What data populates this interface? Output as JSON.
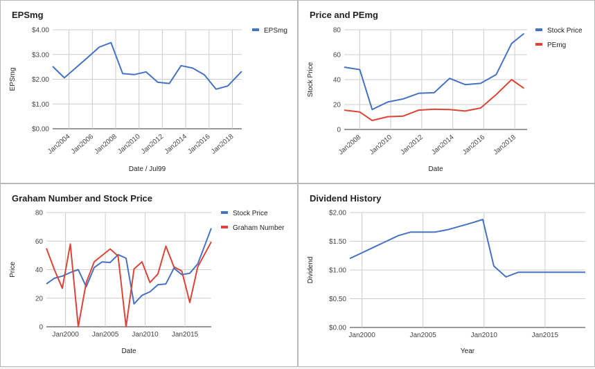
{
  "chart_data": [
    {
      "type": "line",
      "title": "EPSmg",
      "xlabel": "Date / Jul99",
      "ylabel": "EPSmg",
      "xlim": [
        2002.6,
        2018.8
      ],
      "ylim": [
        0,
        4
      ],
      "yticks": [
        0,
        1,
        2,
        3,
        4
      ],
      "ytick_labels": [
        "$0.00",
        "$1.00",
        "$2.00",
        "$3.00",
        "$4.00"
      ],
      "xticks": [
        2004,
        2006,
        2008,
        2010,
        2012,
        2014,
        2016,
        2018
      ],
      "xtick_labels": [
        "Jan2004",
        "Jan2006",
        "Jan2008",
        "Jan2010",
        "Jan2012",
        "Jan2014",
        "Jan2016",
        "Jan2018"
      ],
      "grid": true,
      "legend": "top-right",
      "rotate_xticks": true,
      "series": [
        {
          "name": "EPSmg",
          "color": "#4472C4",
          "x": [
            2002.6,
            2003.6,
            2004.6,
            2005.6,
            2006.6,
            2007.6,
            2008.6,
            2009.6,
            2010.6,
            2011.6,
            2012.6,
            2013.6,
            2014.6,
            2015.6,
            2016.6,
            2017.6,
            2018.8
          ],
          "y": [
            2.52,
            2.06,
            2.47,
            2.88,
            3.3,
            3.48,
            2.23,
            2.19,
            2.3,
            1.88,
            1.83,
            2.55,
            2.45,
            2.18,
            1.6,
            1.73,
            2.32
          ]
        }
      ]
    },
    {
      "type": "line",
      "title": "Price and PEmg",
      "xlabel": "Date",
      "ylabel": "Stock Price",
      "xlim": [
        2007.0,
        2018.8
      ],
      "ylim": [
        0,
        80
      ],
      "yticks": [
        0,
        20,
        40,
        60,
        80
      ],
      "ytick_labels": [
        "0",
        "20",
        "40",
        "60",
        "80"
      ],
      "xticks": [
        2008,
        2010,
        2012,
        2014,
        2016,
        2018
      ],
      "xtick_labels": [
        "Jan2008",
        "Jan2010",
        "Jan2012",
        "Jan2014",
        "Jan2016",
        "Jan2018"
      ],
      "grid": true,
      "legend": "top-right",
      "rotate_xticks": true,
      "series": [
        {
          "name": "Stock Price",
          "color": "#4472C4",
          "x": [
            2007.0,
            2008.0,
            2008.8,
            2009.8,
            2010.8,
            2011.8,
            2012.8,
            2013.8,
            2014.8,
            2015.8,
            2016.8,
            2017.8,
            2018.6
          ],
          "y": [
            50,
            48,
            16,
            22,
            24.5,
            29,
            29.5,
            41,
            36,
            37,
            44,
            69,
            77
          ]
        },
        {
          "name": "PEmg",
          "color": "#DB4437",
          "x": [
            2007.0,
            2008.0,
            2008.8,
            2009.8,
            2010.8,
            2011.8,
            2012.8,
            2013.8,
            2014.8,
            2015.8,
            2016.8,
            2017.8,
            2018.6
          ],
          "y": [
            15.5,
            14,
            7.2,
            10.2,
            10.7,
            15.5,
            16.2,
            16,
            14.8,
            17.2,
            28,
            40,
            33
          ]
        }
      ]
    },
    {
      "type": "line",
      "title": "Graham Number and Stock Price",
      "xlabel": "Date",
      "ylabel": "Price",
      "xlim": [
        1997.6,
        2018.3
      ],
      "ylim": [
        0,
        80
      ],
      "yticks": [
        0,
        20,
        40,
        60,
        80
      ],
      "ytick_labels": [
        "0",
        "20",
        "40",
        "60",
        "80"
      ],
      "xticks": [
        2000,
        2005,
        2010,
        2015
      ],
      "xtick_labels": [
        "Jan2000",
        "Jan2005",
        "Jan2010",
        "Jan2015"
      ],
      "grid": true,
      "legend": "top-right",
      "rotate_xticks": false,
      "series": [
        {
          "name": "Stock Price",
          "color": "#4472C4",
          "x": [
            1997.6,
            1998.6,
            1999.6,
            2000.6,
            2001.6,
            2002.6,
            2003.6,
            2004.6,
            2005.6,
            2006.6,
            2007.6,
            2008.6,
            2009.6,
            2010.6,
            2011.6,
            2012.6,
            2013.6,
            2014.6,
            2015.6,
            2016.6,
            2018.3
          ],
          "y": [
            30,
            34,
            35.5,
            38,
            40,
            28,
            41.5,
            45.5,
            45,
            50.5,
            48,
            16,
            22,
            24.5,
            29.5,
            30,
            41,
            36.5,
            37.5,
            44,
            69
          ]
        },
        {
          "name": "Graham Number",
          "color": "#DB4437",
          "x": [
            1997.6,
            1998.6,
            1999.6,
            2000.6,
            2001.6,
            2002.6,
            2003.6,
            2004.6,
            2005.6,
            2006.6,
            2007.6,
            2008.6,
            2009.6,
            2010.6,
            2011.6,
            2012.6,
            2013.6,
            2014.6,
            2015.6,
            2016.6,
            2018.3
          ],
          "y": [
            55,
            40,
            27,
            58,
            0,
            31,
            45.5,
            50,
            54.5,
            49.5,
            0,
            40.5,
            45.5,
            31,
            37,
            56.5,
            42,
            39,
            17,
            42,
            59.5
          ]
        }
      ]
    },
    {
      "type": "line",
      "title": "Dividend History",
      "xlabel": "Year",
      "ylabel": "Dividend",
      "xlim": [
        1999.0,
        2018.3
      ],
      "ylim": [
        0,
        2
      ],
      "yticks": [
        0,
        0.5,
        1,
        1.5,
        2
      ],
      "ytick_labels": [
        "$0.00",
        "$0.50",
        "$1.00",
        "$1.50",
        "$2.00"
      ],
      "xticks": [
        2000,
        2005,
        2010,
        2015
      ],
      "xtick_labels": [
        "Jan2000",
        "Jan2005",
        "Jan2010",
        "Jan2015"
      ],
      "grid": true,
      "legend": "none",
      "rotate_xticks": false,
      "series": [
        {
          "name": "",
          "color": "#4472C4",
          "x": [
            1999.0,
            2000.0,
            2001.0,
            2002.0,
            2003.0,
            2004.0,
            2005.0,
            2006.0,
            2007.0,
            2008.0,
            2009.0,
            2009.9,
            2010.8,
            2011.8,
            2012.8,
            2013.8,
            2014.8,
            2015.8,
            2016.8,
            2018.3
          ],
          "y": [
            1.2,
            1.3,
            1.4,
            1.5,
            1.6,
            1.66,
            1.66,
            1.66,
            1.7,
            1.76,
            1.82,
            1.88,
            1.07,
            0.88,
            0.96,
            0.96,
            0.96,
            0.96,
            0.96,
            0.96
          ]
        }
      ]
    }
  ]
}
